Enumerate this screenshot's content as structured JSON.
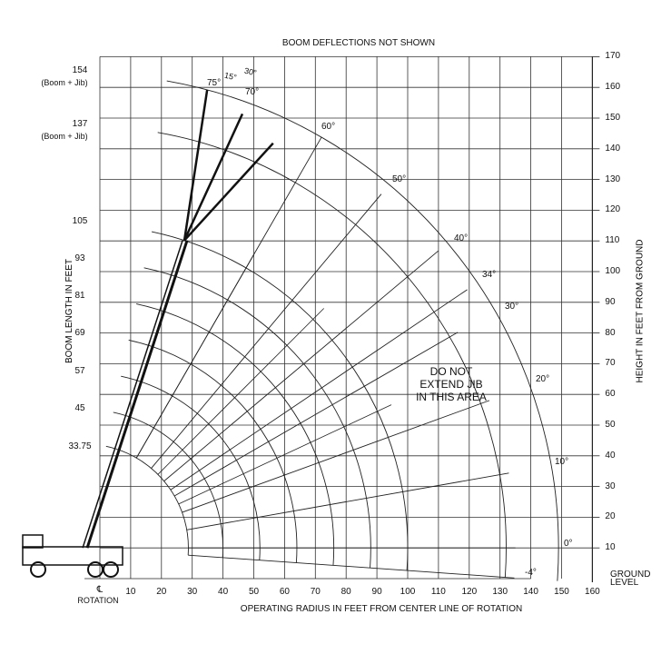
{
  "title": "BOOM DEFLECTIONS NOT SHOWN",
  "x_axis": {
    "label": "OPERATING RADIUS IN FEET FROM CENTER LINE OF ROTATION",
    "ticks": [
      "10",
      "20",
      "30",
      "40",
      "50",
      "60",
      "70",
      "80",
      "90",
      "100",
      "110",
      "120",
      "130",
      "140",
      "150",
      "160"
    ],
    "centerline": "℄",
    "rotation_label": "ROTATION"
  },
  "y_axis_right": {
    "label": "HEIGHT IN FEET FROM GROUND",
    "ticks": [
      "10",
      "20",
      "30",
      "40",
      "50",
      "60",
      "70",
      "80",
      "90",
      "100",
      "110",
      "120",
      "130",
      "140",
      "150",
      "160",
      "170"
    ],
    "ground_label_1": "GROUND",
    "ground_label_2": "LEVEL"
  },
  "y_axis_left": {
    "label": "BOOM LENGTH IN FEET",
    "boom_lengths": [
      "154",
      "137",
      "105",
      "93",
      "81",
      "69",
      "57",
      "45",
      "33.75"
    ],
    "jib_note": "(Boom + Jib)"
  },
  "angle_labels": [
    "60°",
    "50°",
    "40°",
    "34°",
    "30°",
    "20°",
    "10°",
    "0°",
    "-4°"
  ],
  "jib_offsets": [
    "30°",
    "15°",
    "75°",
    "70°"
  ],
  "warning": {
    "line1": "DO NOT",
    "line2": "EXTEND JIB",
    "line3": "IN THIS AREA"
  }
}
